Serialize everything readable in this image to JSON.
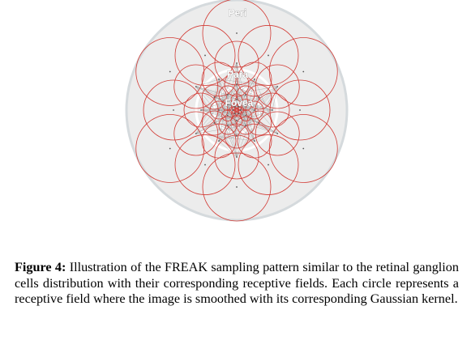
{
  "figure": {
    "zone_labels": {
      "peri": "Peri",
      "para": "Para",
      "fovea": "Fovea"
    },
    "colors": {
      "receptive_field": "#d23a34",
      "zone_fill": "#ececec",
      "zone_ring": "#d5dadd",
      "connection": "#9a9a9a"
    }
  },
  "caption": {
    "label": "Figure 4:",
    "text": " Illustration of the FREAK sampling pattern similar to the retinal ganglion cells distribution with their corresponding receptive fields. Each circle represents a receptive field where the image is smoothed with its corresponding Gaussian kernel."
  }
}
